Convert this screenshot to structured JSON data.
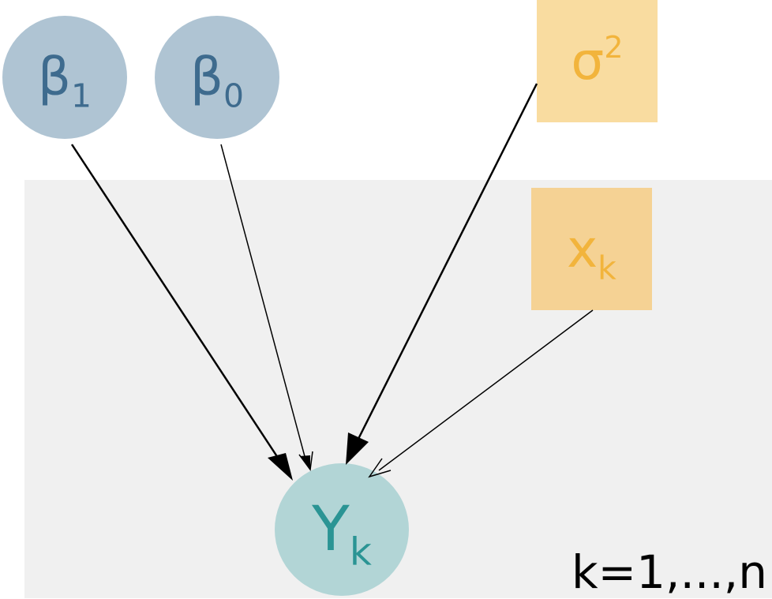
{
  "nodes": {
    "beta1": {
      "symbol": "β",
      "sub": "1"
    },
    "beta0": {
      "symbol": "β",
      "sub": "0"
    },
    "sigma2": {
      "symbol": "σ",
      "sup": "2"
    },
    "xk": {
      "symbol": "x",
      "sub": "k"
    },
    "yk": {
      "symbol": "Y",
      "sub": "k"
    }
  },
  "plate": {
    "label": "k=1,...,n"
  },
  "colors": {
    "parameter_fill": "#afc4d3",
    "parameter_text": "#3e6b8e",
    "fixed_fill": "#f9dca0",
    "fixed_text": "#f2b43c",
    "observed_fill": "#b2d5d6",
    "observed_text": "#2a9494",
    "plate_fill": "#f0f0f0"
  },
  "edges": [
    {
      "from": "beta1",
      "to": "yk"
    },
    {
      "from": "beta0",
      "to": "yk"
    },
    {
      "from": "sigma2",
      "to": "yk"
    },
    {
      "from": "xk",
      "to": "yk"
    }
  ]
}
